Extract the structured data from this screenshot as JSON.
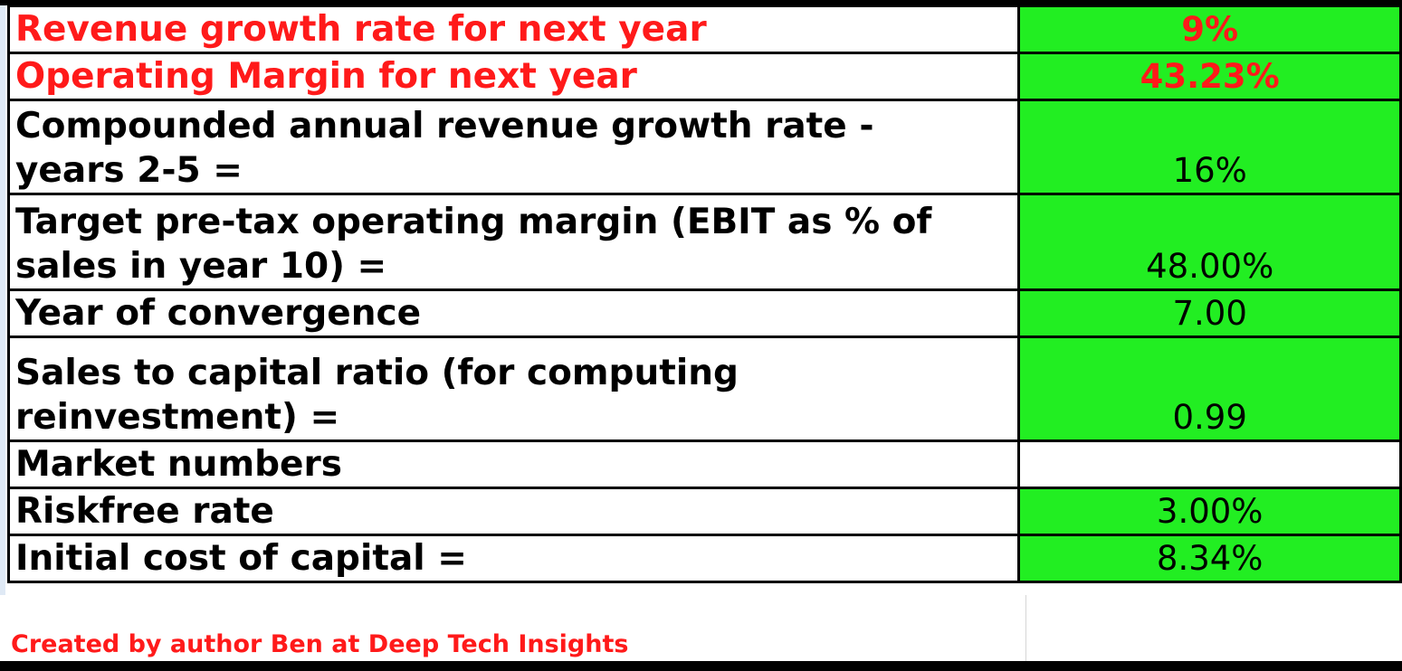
{
  "rows": [
    {
      "label": "Revenue growth rate for next year",
      "value": "9%"
    },
    {
      "label": "Operating Margin for next year",
      "value": "43.23%"
    },
    {
      "label_line1": "Compounded annual revenue growth rate -",
      "label_line2": "years 2-5 =",
      "value": "16%"
    },
    {
      "label_line1": "Target pre-tax operating margin (EBIT as % of",
      "label_line2": "sales in year 10) =",
      "value": "48.00%"
    },
    {
      "label": "Year of convergence",
      "value": "7.00"
    },
    {
      "label_line1": "Sales to capital ratio  (for computing",
      "label_line2": "reinvestment) =",
      "value": "0.99"
    },
    {
      "label": "Market numbers",
      "value": ""
    },
    {
      "label": "Riskfree rate",
      "value": "3.00%"
    },
    {
      "label": "Initial cost of capital =",
      "value": "8.34%"
    }
  ],
  "footer": {
    "credit": "Created by author Ben at Deep Tech Insights"
  },
  "colors": {
    "input_cell": "#22ee22",
    "highlight_text": "#ff1a1a",
    "border": "#000000"
  }
}
